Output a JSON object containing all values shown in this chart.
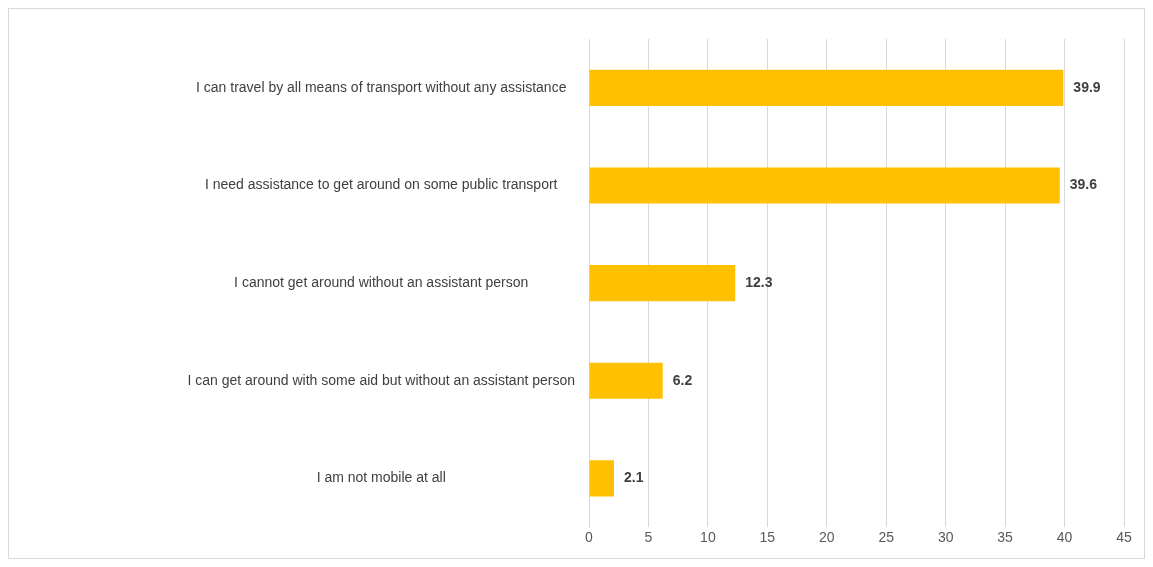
{
  "chart_data": {
    "type": "bar",
    "orientation": "horizontal",
    "categories": [
      "I can travel by all means of transport without any assistance",
      "I need assistance to get around on some public transport",
      "I cannot get around without an assistant person",
      "I can get around with some aid but without an assistant person",
      "I am not mobile at all"
    ],
    "values": [
      39.9,
      39.6,
      12.3,
      6.2,
      2.1
    ],
    "color": "#ffc000",
    "xlim": [
      0,
      45
    ],
    "xticks": [
      0,
      5,
      10,
      15,
      20,
      25,
      30,
      35,
      40,
      45
    ],
    "grid": "x",
    "legend": false,
    "data_labels": true
  }
}
